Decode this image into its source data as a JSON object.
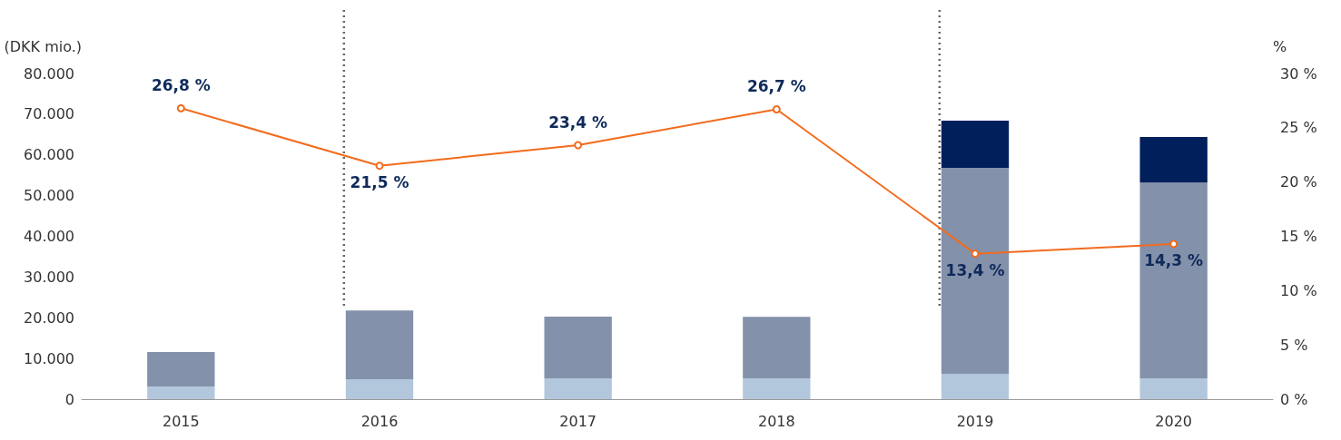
{
  "chart_data": {
    "type": "bar",
    "stacked": true,
    "ylabel": "(DKK mio.)",
    "y2label": "%",
    "categories": [
      "2015",
      "2016",
      "2017",
      "2018",
      "2019",
      "2020"
    ],
    "series": [
      {
        "color": "#b3c7dc",
        "values": [
          3100,
          4900,
          5100,
          5100,
          6200,
          5100
        ]
      },
      {
        "color": "#8391ab",
        "values": [
          8500,
          16900,
          15200,
          15100,
          50600,
          48100
        ]
      },
      {
        "color": "#001f5b",
        "values": [
          null,
          null,
          null,
          null,
          11600,
          11200
        ]
      },
      {
        "type": "line",
        "axis": "y2",
        "color": "#f26b1d",
        "marker": "circle",
        "values": [
          26.8,
          21.5,
          23.4,
          26.7,
          13.4,
          14.3
        ],
        "value_labels": [
          "26,8 %",
          "21,5 %",
          "23,4 %",
          "26,7 %",
          "13,4 %",
          "14,3 %"
        ]
      }
    ],
    "ylim": [
      0,
      80000
    ],
    "yticks": [
      {
        "value": 0,
        "label": "0"
      },
      {
        "value": 10000,
        "label": "10.000"
      },
      {
        "value": 20000,
        "label": "20.000"
      },
      {
        "value": 30000,
        "label": "30.000"
      },
      {
        "value": 40000,
        "label": "40.000"
      },
      {
        "value": 50000,
        "label": "50.000"
      },
      {
        "value": 60000,
        "label": "60.000"
      },
      {
        "value": 70000,
        "label": "70.000"
      },
      {
        "value": 80000,
        "label": "80.000"
      }
    ],
    "y2lim": [
      0,
      30
    ],
    "y2ticks": [
      {
        "value": 0,
        "label": "0 %"
      },
      {
        "value": 5,
        "label": "5 %"
      },
      {
        "value": 10,
        "label": "10 %"
      },
      {
        "value": 15,
        "label": "15 %"
      },
      {
        "value": 20,
        "label": "20 %"
      },
      {
        "value": 25,
        "label": "25 %"
      },
      {
        "value": 30,
        "label": "30 %"
      }
    ],
    "ref_lines": [
      {
        "axis": "x",
        "value": "2016",
        "color": "#666666",
        "line_style": "dotted"
      },
      {
        "axis": "x",
        "value": "2019",
        "color": "#666666",
        "line_style": "dotted"
      }
    ],
    "grid": false
  }
}
